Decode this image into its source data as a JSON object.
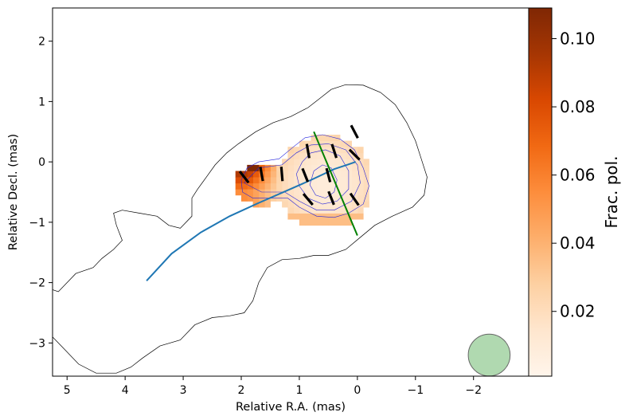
{
  "chart_data": {
    "type": "heatmap",
    "title": "",
    "xlabel": "Relative R.A. (mas)",
    "ylabel": "Relative Decl. (mas)",
    "xlim": [
      5.25,
      -2.95
    ],
    "ylim": [
      -3.55,
      2.55
    ],
    "x_ticks": [
      5,
      4,
      3,
      2,
      1,
      0,
      -1,
      -2
    ],
    "x_tick_labels": [
      "5",
      "4",
      "3",
      "2",
      "1",
      "0",
      "−1",
      "−2"
    ],
    "y_ticks": [
      2,
      1,
      0,
      -1,
      -2,
      -3
    ],
    "y_tick_labels": [
      "2",
      "1",
      "0",
      "−1",
      "−2",
      "−3"
    ],
    "colorbar": {
      "label": "Frac. pol.",
      "colormap": "Oranges",
      "range": [
        0.001,
        0.109
      ],
      "ticks": [
        0.02,
        0.04,
        0.06,
        0.08,
        0.1
      ],
      "tick_labels": [
        "0.02",
        "0.04",
        "0.06",
        "0.08",
        "0.10"
      ]
    },
    "total_intensity_contour": {
      "color": "#000000",
      "points": [
        [
          5.3,
          -2.1
        ],
        [
          5.15,
          -2.15
        ],
        [
          5.0,
          -2.0
        ],
        [
          4.85,
          -1.85
        ],
        [
          4.55,
          -1.75
        ],
        [
          4.4,
          -1.6
        ],
        [
          4.2,
          -1.45
        ],
        [
          4.05,
          -1.3
        ],
        [
          4.15,
          -1.05
        ],
        [
          4.2,
          -0.85
        ],
        [
          4.05,
          -0.8
        ],
        [
          3.75,
          -0.85
        ],
        [
          3.45,
          -0.9
        ],
        [
          3.25,
          -1.05
        ],
        [
          3.05,
          -1.1
        ],
        [
          2.85,
          -0.9
        ],
        [
          2.85,
          -0.6
        ],
        [
          2.75,
          -0.45
        ],
        [
          2.6,
          -0.25
        ],
        [
          2.45,
          -0.05
        ],
        [
          2.25,
          0.15
        ],
        [
          2.05,
          0.3
        ],
        [
          1.75,
          0.5
        ],
        [
          1.45,
          0.65
        ],
        [
          1.15,
          0.75
        ],
        [
          0.85,
          0.9
        ],
        [
          0.65,
          1.05
        ],
        [
          0.45,
          1.2
        ],
        [
          0.2,
          1.28
        ],
        [
          -0.1,
          1.27
        ],
        [
          -0.4,
          1.15
        ],
        [
          -0.65,
          0.95
        ],
        [
          -0.85,
          0.65
        ],
        [
          -1.0,
          0.35
        ],
        [
          -1.1,
          0.05
        ],
        [
          -1.2,
          -0.25
        ],
        [
          -1.15,
          -0.55
        ],
        [
          -0.95,
          -0.75
        ],
        [
          -0.6,
          -0.9
        ],
        [
          -0.3,
          -1.05
        ],
        [
          -0.05,
          -1.25
        ],
        [
          0.2,
          -1.45
        ],
        [
          0.5,
          -1.55
        ],
        [
          0.75,
          -1.55
        ],
        [
          1.0,
          -1.6
        ],
        [
          1.3,
          -1.62
        ],
        [
          1.55,
          -1.75
        ],
        [
          1.7,
          -2.0
        ],
        [
          1.8,
          -2.3
        ],
        [
          1.95,
          -2.5
        ],
        [
          2.2,
          -2.55
        ],
        [
          2.5,
          -2.58
        ],
        [
          2.8,
          -2.7
        ],
        [
          3.05,
          -2.95
        ],
        [
          3.4,
          -3.05
        ],
        [
          3.7,
          -3.25
        ],
        [
          3.9,
          -3.4
        ],
        [
          4.15,
          -3.5
        ],
        [
          4.5,
          -3.5
        ],
        [
          4.8,
          -3.35
        ],
        [
          5.05,
          -3.1
        ],
        [
          5.25,
          -2.9
        ]
      ]
    },
    "polarized_contours": {
      "color": "#2222dd",
      "levels": [
        {
          "points": [
            [
              2.0,
              -0.3
            ],
            [
              1.9,
              -0.1
            ],
            [
              1.7,
              0.0
            ],
            [
              1.35,
              0.05
            ],
            [
              1.1,
              0.25
            ],
            [
              0.9,
              0.4
            ],
            [
              0.6,
              0.45
            ],
            [
              0.3,
              0.38
            ],
            [
              0.05,
              0.2
            ],
            [
              -0.1,
              -0.1
            ],
            [
              -0.2,
              -0.4
            ],
            [
              -0.1,
              -0.7
            ],
            [
              0.15,
              -0.85
            ],
            [
              0.4,
              -0.92
            ],
            [
              0.7,
              -0.9
            ],
            [
              1.0,
              -0.75
            ],
            [
              1.2,
              -0.6
            ],
            [
              1.5,
              -0.6
            ],
            [
              1.8,
              -0.6
            ],
            [
              1.98,
              -0.5
            ]
          ]
        },
        {
          "points": [
            [
              1.95,
              -0.35
            ],
            [
              1.7,
              -0.1
            ],
            [
              1.3,
              -0.05
            ],
            [
              1.05,
              0.15
            ],
            [
              0.8,
              0.28
            ],
            [
              0.5,
              0.3
            ],
            [
              0.2,
              0.2
            ],
            [
              0.0,
              -0.05
            ],
            [
              -0.05,
              -0.35
            ],
            [
              0.1,
              -0.65
            ],
            [
              0.4,
              -0.8
            ],
            [
              0.7,
              -0.8
            ],
            [
              1.0,
              -0.65
            ],
            [
              1.25,
              -0.5
            ],
            [
              1.65,
              -0.5
            ]
          ]
        },
        {
          "points": [
            [
              0.95,
              0.0
            ],
            [
              0.8,
              0.15
            ],
            [
              0.55,
              0.2
            ],
            [
              0.3,
              0.1
            ],
            [
              0.15,
              -0.15
            ],
            [
              0.15,
              -0.45
            ],
            [
              0.35,
              -0.65
            ],
            [
              0.6,
              -0.7
            ],
            [
              0.85,
              -0.6
            ],
            [
              1.0,
              -0.4
            ],
            [
              1.05,
              -0.2
            ]
          ]
        },
        {
          "points": [
            [
              0.75,
              -0.15
            ],
            [
              0.6,
              -0.05
            ],
            [
              0.45,
              -0.1
            ],
            [
              0.35,
              -0.3
            ],
            [
              0.4,
              -0.5
            ],
            [
              0.55,
              -0.6
            ],
            [
              0.72,
              -0.55
            ],
            [
              0.82,
              -0.38
            ]
          ]
        }
      ]
    },
    "frac_pol_pixels": {
      "pixel_size_mas": 0.1,
      "peak_value": 0.109,
      "west_blob": {
        "center": [
          0.55,
          -0.35
        ],
        "radius": [
          0.85,
          0.78
        ],
        "peak": 0.025
      },
      "east_blob": {
        "center": [
          1.65,
          -0.38
        ],
        "radius": [
          0.48,
          0.35
        ],
        "peak": 0.06
      }
    },
    "evpa_vectors": {
      "color": "#000000",
      "vectors": [
        [
          0.05,
          0.5,
          118
        ],
        [
          0.05,
          0.12,
          135
        ],
        [
          0.4,
          0.18,
          108
        ],
        [
          0.85,
          0.18,
          100
        ],
        [
          0.5,
          -0.22,
          105
        ],
        [
          0.9,
          -0.22,
          112
        ],
        [
          1.3,
          -0.2,
          95
        ],
        [
          1.65,
          -0.2,
          100
        ],
        [
          1.95,
          -0.25,
          128
        ],
        [
          0.45,
          -0.6,
          112
        ],
        [
          0.05,
          -0.62,
          125
        ],
        [
          0.85,
          -0.62,
          130
        ]
      ]
    },
    "jet_ridge_line": {
      "color": "#1f77b4",
      "x": [
        3.63,
        3.2,
        2.7,
        2.2,
        1.7,
        1.2,
        0.8,
        0.4,
        0.15,
        0.03
      ],
      "y": [
        -1.97,
        -1.52,
        -1.17,
        -0.9,
        -0.68,
        -0.47,
        -0.3,
        -0.12,
        -0.04,
        0.0
      ]
    },
    "transverse_cut": {
      "color": "#008000",
      "x": [
        0.75,
        0.0
      ],
      "y": [
        0.5,
        -1.22
      ]
    },
    "beam": {
      "x": -2.27,
      "y": -3.2,
      "radius": 0.36,
      "color": "#8fc98f"
    }
  }
}
